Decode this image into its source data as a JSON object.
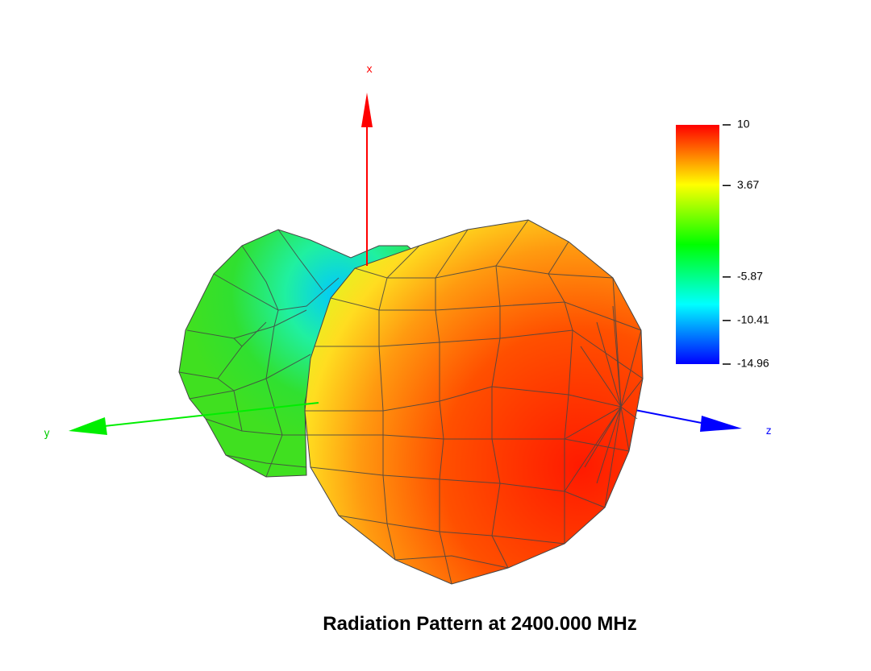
{
  "chart_data": {
    "type": "radiation-pattern",
    "title": "Radiation Pattern at 2400.000 MHz",
    "axes": {
      "x": "x",
      "y": "y",
      "z": "z"
    },
    "colorbar": {
      "lim": [
        -14.96,
        10
      ],
      "ticks": [
        10,
        3.67,
        -5.87,
        -10.41,
        -14.96
      ],
      "colormap": [
        "#0000ff",
        "#00ffff",
        "#00ff00",
        "#ffff00",
        "#ff0000"
      ]
    }
  }
}
